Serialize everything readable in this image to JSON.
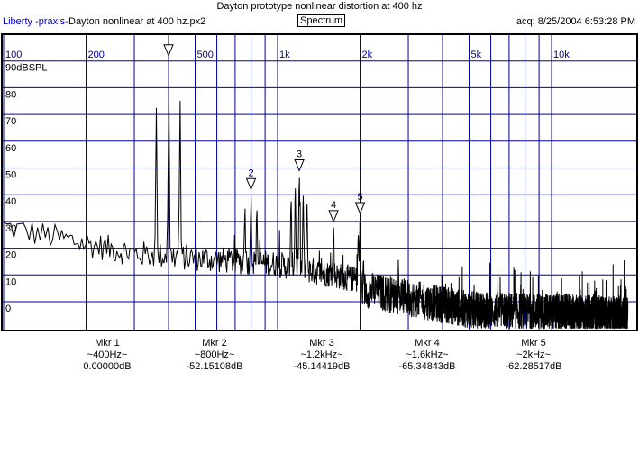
{
  "header": {
    "title": "Dayton prototype nonlinear distortion at 400 hz",
    "app_name": "Liberty -praxis-",
    "file_name": "Dayton nonlinear at 400 hz.px2",
    "mode": "Spectrum",
    "acquired": "acq: 8/25/2004 6:53:28 PM"
  },
  "colors": {
    "grid": "#00009c",
    "trace": "#000000",
    "app_name": "#0000c0"
  },
  "chart_data": {
    "type": "line",
    "title": "",
    "x_scale": "log",
    "xlim": [
      100,
      20000
    ],
    "ylim": [
      -10,
      100
    ],
    "y_unit": "dBSPL",
    "grid": true,
    "x_tick_labels": [
      {
        "value": 100,
        "label": "100"
      },
      {
        "value": 200,
        "label": "200"
      },
      {
        "value": 500,
        "label": "500"
      },
      {
        "value": 1000,
        "label": "1k"
      },
      {
        "value": 2000,
        "label": "2k"
      },
      {
        "value": 5000,
        "label": "5k"
      },
      {
        "value": 10000,
        "label": "10k"
      }
    ],
    "x_grid": [
      100,
      200,
      300,
      400,
      500,
      600,
      700,
      800,
      900,
      1000,
      2000,
      3000,
      4000,
      5000,
      6000,
      7000,
      8000,
      9000,
      10000
    ],
    "y_tick_labels": [
      {
        "value": 90,
        "label": "90dBSPL"
      },
      {
        "value": 80,
        "label": "80"
      },
      {
        "value": 70,
        "label": "70"
      },
      {
        "value": 60,
        "label": "60"
      },
      {
        "value": 50,
        "label": "50"
      },
      {
        "value": 40,
        "label": "40"
      },
      {
        "value": 30,
        "label": "30"
      },
      {
        "value": 20,
        "label": "20"
      },
      {
        "value": 10,
        "label": "10"
      },
      {
        "value": 0,
        "label": "0"
      }
    ],
    "peaks": [
      {
        "freq": 360,
        "level": 85
      },
      {
        "freq": 400,
        "level": 92
      },
      {
        "freq": 440,
        "level": 84
      },
      {
        "freq": 760,
        "level": 36
      },
      {
        "freq": 800,
        "level": 40
      },
      {
        "freq": 840,
        "level": 35
      },
      {
        "freq": 1120,
        "level": 38
      },
      {
        "freq": 1160,
        "level": 43
      },
      {
        "freq": 1200,
        "level": 47
      },
      {
        "freq": 1240,
        "level": 40
      },
      {
        "freq": 1280,
        "level": 37
      },
      {
        "freq": 1600,
        "level": 28
      },
      {
        "freq": 2000,
        "level": 31
      },
      {
        "freq": 1970,
        "level": 25
      }
    ],
    "noise_floor": [
      {
        "freq": 100,
        "level": 28
      },
      {
        "freq": 300,
        "level": 18
      },
      {
        "freq": 1000,
        "level": 14
      },
      {
        "freq": 2000,
        "level": 8
      },
      {
        "freq": 5000,
        "level": 0
      },
      {
        "freq": 19000,
        "level": -2
      }
    ],
    "markers": [
      {
        "id": "1",
        "freq": 400,
        "level": 92
      },
      {
        "id": "2",
        "freq": 800,
        "level": 42
      },
      {
        "id": "3",
        "freq": 1200,
        "level": 49
      },
      {
        "id": "4",
        "freq": 1600,
        "level": 30
      },
      {
        "id": "5",
        "freq": 2000,
        "level": 33
      }
    ]
  },
  "marker_readouts": [
    {
      "name": "Mkr 1",
      "freq": "~400Hz~",
      "value": "0.00000dB"
    },
    {
      "name": "Mkr 2",
      "freq": "~800Hz~",
      "value": "-52.15108dB"
    },
    {
      "name": "Mkr 3",
      "freq": "~1.2kHz~",
      "value": "-45.14419dB"
    },
    {
      "name": "Mkr 4",
      "freq": "~1.6kHz~",
      "value": "-65.34843dB"
    },
    {
      "name": "Mkr 5",
      "freq": "~2kHz~",
      "value": "-62.28517dB"
    }
  ]
}
